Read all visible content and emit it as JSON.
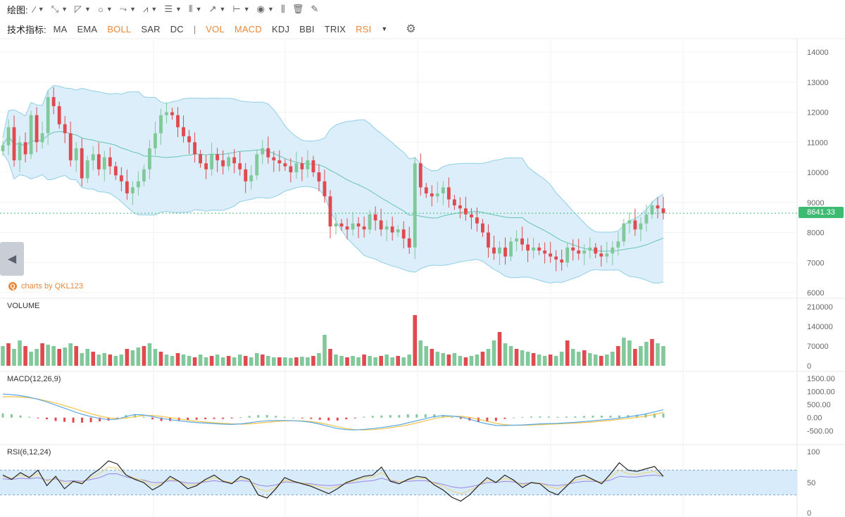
{
  "toolbar": {
    "label": "绘图:",
    "tools": [
      {
        "icon": "line-tool-icon",
        "glyph": "⁄"
      },
      {
        "icon": "ray-tool-icon",
        "glyph": "⤡"
      },
      {
        "icon": "triangle-tool-icon",
        "glyph": "◸"
      },
      {
        "icon": "circle-tool-icon",
        "glyph": "○"
      },
      {
        "icon": "path-tool-icon",
        "glyph": "⤳"
      },
      {
        "icon": "pattern-tool-icon",
        "glyph": "⩘"
      },
      {
        "icon": "fib-tool-icon",
        "glyph": "☰"
      },
      {
        "icon": "vertical-lines-tool-icon",
        "glyph": "⦀"
      },
      {
        "icon": "arrow-tool-icon",
        "glyph": "↗"
      },
      {
        "icon": "range-tool-icon",
        "glyph": "⊢"
      },
      {
        "icon": "comment-tool-icon",
        "glyph": "◉"
      }
    ],
    "extra_icons": [
      {
        "icon": "bar-chart-icon",
        "glyph": "⫼"
      },
      {
        "icon": "trash-icon",
        "glyph": "🗑"
      },
      {
        "icon": "brush-icon",
        "glyph": "✎"
      }
    ]
  },
  "indicators": {
    "label": "技术指标:",
    "items": [
      {
        "name": "MA",
        "active": false
      },
      {
        "name": "EMA",
        "active": false
      },
      {
        "name": "BOLL",
        "active": true
      },
      {
        "name": "SAR",
        "active": false
      },
      {
        "name": "DC",
        "active": false
      },
      {
        "name": "|",
        "separator": true
      },
      {
        "name": "VOL",
        "active": true
      },
      {
        "name": "MACD",
        "active": true
      },
      {
        "name": "KDJ",
        "active": false
      },
      {
        "name": "BBI",
        "active": false
      },
      {
        "name": "TRIX",
        "active": false
      },
      {
        "name": "RSI",
        "active": true
      }
    ]
  },
  "credit": "charts by QKL123",
  "last_price": "8641.33",
  "colors": {
    "up": "#81c89a",
    "down": "#e0494e",
    "band_fill": "#dbeefa",
    "band_line": "#8fcfe6",
    "mid_line": "#66c4b6",
    "price_line": "#3dbb73",
    "macd_dif": "#5aa8e6",
    "macd_dea": "#f0c246",
    "rsi6": "#222222",
    "rsi12": "#f0d070",
    "rsi24": "#9a86e0",
    "rsi_zone": "#d8ebfb",
    "accent": "#e8893a"
  },
  "chart_data": [
    {
      "type": "candlestick",
      "title": "",
      "yaxis_ticks": [
        "14000",
        "13000",
        "12000",
        "11000",
        "10000",
        "9000",
        "8000",
        "7000",
        "6000"
      ],
      "ylim": [
        6000,
        14000
      ],
      "overlay": "BOLL",
      "last_price": 8641.33,
      "close_series": [
        10900,
        11500,
        10400,
        11000,
        10600,
        11900,
        11000,
        11300,
        12500,
        12200,
        11600,
        11300,
        10400,
        10800,
        9800,
        10400,
        10600,
        10100,
        10500,
        10200,
        9900,
        9700,
        9300,
        9500,
        9700,
        10100,
        10800,
        11300,
        11900,
        12000,
        11900,
        11500,
        11200,
        11000,
        10600,
        10300,
        10100,
        10600,
        10400,
        10200,
        10500,
        10300,
        10100,
        9700,
        9900,
        10600,
        10800,
        10500,
        10400,
        10300,
        10200,
        10000,
        10300,
        10100,
        10400,
        10000,
        9700,
        9200,
        8200,
        8300,
        8200,
        8100,
        8300,
        8200,
        8100,
        8600,
        8400,
        8100,
        8200,
        8000,
        8100,
        7800,
        7500,
        10300,
        9500,
        9300,
        9200,
        9300,
        9500,
        9100,
        8900,
        8800,
        8600,
        8500,
        8300,
        8000,
        7500,
        7300,
        7500,
        7200,
        7700,
        7800,
        7600,
        7400,
        7500,
        7400,
        7300,
        7200,
        7100,
        7000,
        7500,
        7400,
        7300,
        7400,
        7500,
        7300,
        7200,
        7300,
        7500,
        7700,
        8300,
        8400,
        8100,
        8300,
        8600,
        8900,
        8800,
        8641
      ]
    },
    {
      "type": "bar",
      "title": "VOLUME",
      "yaxis_ticks": [
        "210000",
        "140000",
        "70000",
        "0"
      ],
      "ylim": [
        0,
        210000
      ],
      "values": [
        70000,
        80000,
        60000,
        90000,
        70000,
        50000,
        60000,
        80000,
        75000,
        70000,
        60000,
        65000,
        80000,
        70000,
        45000,
        60000,
        50000,
        40000,
        45000,
        40000,
        35000,
        40000,
        60000,
        55000,
        65000,
        70000,
        80000,
        60000,
        50000,
        40000,
        35000,
        45000,
        40000,
        35000,
        30000,
        40000,
        30000,
        35000,
        40000,
        30000,
        35000,
        30000,
        40000,
        35000,
        30000,
        45000,
        40000,
        35000,
        30000,
        30000,
        30000,
        28000,
        30000,
        32000,
        30000,
        35000,
        45000,
        110000,
        60000,
        40000,
        35000,
        30000,
        35000,
        30000,
        40000,
        35000,
        30000,
        35000,
        40000,
        30000,
        35000,
        30000,
        40000,
        180000,
        90000,
        70000,
        60000,
        50000,
        45000,
        40000,
        45000,
        35000,
        30000,
        35000,
        40000,
        50000,
        60000,
        90000,
        120000,
        80000,
        70000,
        60000,
        55000,
        50000,
        45000,
        40000,
        35000,
        40000,
        35000,
        50000,
        90000,
        60000,
        50000,
        55000,
        45000,
        40000,
        35000,
        40000,
        50000,
        70000,
        100000,
        90000,
        60000,
        70000,
        85000,
        95000,
        80000,
        70000
      ]
    },
    {
      "type": "line",
      "title": "MACD(12,26,9)",
      "yaxis_ticks": [
        "1500.00",
        "1000.00",
        "500.00",
        "0.00",
        "-500.00"
      ],
      "ylim": [
        -600,
        1500
      ],
      "series": [
        {
          "name": "DIF",
          "values": [
            900,
            880,
            840,
            780,
            700,
            600,
            480,
            360,
            240,
            130,
            40,
            -30,
            -80,
            -60,
            40,
            120,
            100,
            40,
            -30,
            -80,
            -120,
            -160,
            -190,
            -210,
            -230,
            -250,
            -260,
            -240,
            -200,
            -150,
            -120,
            -110,
            -110,
            -120,
            -140,
            -180,
            -250,
            -340,
            -420,
            -460,
            -470,
            -450,
            -420,
            -380,
            -330,
            -280,
            -200,
            -120,
            -40,
            40,
            80,
            60,
            20,
            -60,
            -160,
            -240,
            -300,
            -300,
            -290,
            -280,
            -260,
            -240,
            -230,
            -220,
            -200,
            -180,
            -150,
            -120,
            -90,
            -60,
            -20,
            30,
            80,
            140,
            220,
            300
          ]
        },
        {
          "name": "DEA",
          "values": [
            800,
            800,
            790,
            760,
            710,
            640,
            560,
            460,
            360,
            250,
            150,
            60,
            -10,
            -40,
            -20,
            40,
            80,
            80,
            50,
            0,
            -50,
            -100,
            -140,
            -170,
            -200,
            -220,
            -240,
            -250,
            -240,
            -210,
            -180,
            -150,
            -130,
            -120,
            -125,
            -150,
            -200,
            -270,
            -350,
            -420,
            -460,
            -470,
            -460,
            -430,
            -390,
            -340,
            -280,
            -200,
            -120,
            -40,
            20,
            50,
            50,
            10,
            -60,
            -140,
            -220,
            -270,
            -290,
            -295,
            -285,
            -270,
            -255,
            -240,
            -225,
            -210,
            -190,
            -165,
            -135,
            -105,
            -70,
            -30,
            10,
            60,
            120,
            200
          ]
        }
      ]
    },
    {
      "type": "line",
      "title": "RSI(6,12,24)",
      "yaxis_ticks": [
        "100",
        "50",
        "0"
      ],
      "ylim": [
        0,
        100
      ],
      "zone": [
        30,
        70
      ],
      "series": [
        {
          "name": "RSI6",
          "values": [
            62,
            55,
            66,
            58,
            70,
            45,
            60,
            40,
            52,
            48,
            62,
            72,
            85,
            80,
            62,
            55,
            50,
            38,
            46,
            60,
            52,
            40,
            45,
            55,
            62,
            52,
            48,
            60,
            55,
            30,
            25,
            40,
            58,
            52,
            48,
            44,
            38,
            32,
            40,
            50,
            55,
            60,
            62,
            75,
            52,
            48,
            55,
            60,
            58,
            46,
            38,
            26,
            20,
            30,
            45,
            58,
            50,
            62,
            54,
            42,
            50,
            48,
            36,
            30,
            44,
            58,
            62,
            55,
            48,
            64,
            82,
            70,
            68,
            72,
            76,
            60
          ]
        },
        {
          "name": "RSI12",
          "values": [
            60,
            57,
            62,
            58,
            64,
            52,
            58,
            48,
            52,
            50,
            58,
            65,
            75,
            73,
            62,
            57,
            53,
            45,
            48,
            56,
            52,
            45,
            47,
            53,
            58,
            53,
            50,
            56,
            54,
            40,
            36,
            42,
            54,
            51,
            49,
            46,
            43,
            40,
            43,
            49,
            53,
            57,
            59,
            66,
            55,
            51,
            54,
            57,
            56,
            49,
            44,
            36,
            32,
            37,
            45,
            54,
            51,
            57,
            53,
            46,
            50,
            49,
            43,
            40,
            46,
            54,
            57,
            54,
            50,
            58,
            70,
            64,
            63,
            66,
            68,
            60
          ]
        },
        {
          "name": "RSI24",
          "values": [
            56,
            55,
            57,
            56,
            58,
            54,
            56,
            52,
            53,
            52,
            55,
            58,
            64,
            64,
            59,
            56,
            54,
            50,
            50,
            53,
            52,
            49,
            49,
            51,
            53,
            51,
            50,
            53,
            52,
            46,
            44,
            46,
            51,
            50,
            49,
            48,
            46,
            45,
            46,
            48,
            50,
            52,
            53,
            57,
            53,
            51,
            52,
            53,
            53,
            50,
            47,
            43,
            41,
            43,
            46,
            50,
            50,
            52,
            51,
            48,
            50,
            49,
            46,
            45,
            47,
            50,
            52,
            52,
            51,
            54,
            60,
            59,
            59,
            61,
            62,
            60
          ]
        }
      ]
    }
  ]
}
